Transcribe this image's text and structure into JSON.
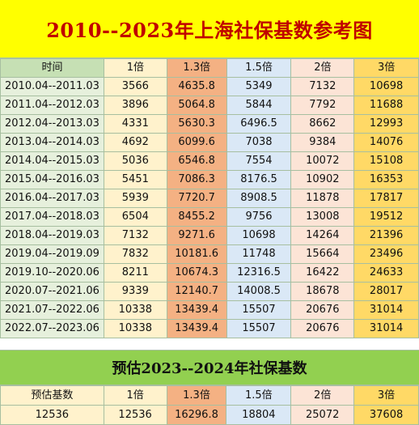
{
  "title": "2010--2023年上海社保基数参考图",
  "headers": [
    "时间",
    "1倍",
    "1.3倍",
    "1.5倍",
    "2倍",
    "3倍"
  ],
  "rows": [
    [
      "2010.04--2011.03",
      "3566",
      "4635.8",
      "5349",
      "7132",
      "10698"
    ],
    [
      "2011.04--2012.03",
      "3896",
      "5064.8",
      "5844",
      "7792",
      "11688"
    ],
    [
      "2012.04--2013.03",
      "4331",
      "5630.3",
      "6496.5",
      "8662",
      "12993"
    ],
    [
      "2013.04--2014.03",
      "4692",
      "6099.6",
      "7038",
      "9384",
      "14076"
    ],
    [
      "2014.04--2015.03",
      "5036",
      "6546.8",
      "7554",
      "10072",
      "15108"
    ],
    [
      "2015.04--2016.03",
      "5451",
      "7086.3",
      "8176.5",
      "10902",
      "16353"
    ],
    [
      "2016.04--2017.03",
      "5939",
      "7720.7",
      "8908.5",
      "11878",
      "17817"
    ],
    [
      "2017.04--2018.03",
      "6504",
      "8455.2",
      "9756",
      "13008",
      "19512"
    ],
    [
      "2018.04--2019.03",
      "7132",
      "9271.6",
      "10698",
      "14264",
      "21396"
    ],
    [
      "2019.04--2019.09",
      "7832",
      "10181.6",
      "11748",
      "15664",
      "23496"
    ],
    [
      "2019.10--2020.06",
      "8211",
      "10674.3",
      "12316.5",
      "16422",
      "24633"
    ],
    [
      "2020.07--2021.06",
      "9339",
      "12140.7",
      "14008.5",
      "18678",
      "28017"
    ],
    [
      "2021.07--2022.06",
      "10338",
      "13439.4",
      "15507",
      "20676",
      "31014"
    ],
    [
      "2022.07--2023.06",
      "10338",
      "13439.4",
      "15507",
      "20676",
      "31014"
    ]
  ],
  "forecast": {
    "title": "预估2023--2024年社保基数",
    "headers": [
      "预估基数",
      "1倍",
      "1.3倍",
      "1.5倍",
      "2倍",
      "3倍"
    ],
    "values": [
      "12536",
      "12536",
      "16296.8",
      "18804",
      "25072",
      "37608"
    ]
  },
  "colors": {
    "title_bg": "#ffff00",
    "title_text": "#c00000",
    "subtitle_bg": "#92d050",
    "col_time": "#e6f0dc",
    "col_1x": "#fff2cc",
    "col_13x": "#f4b183",
    "col_15x": "#dae8f6",
    "col_2x": "#fce4d6",
    "col_3x": "#ffd966"
  }
}
